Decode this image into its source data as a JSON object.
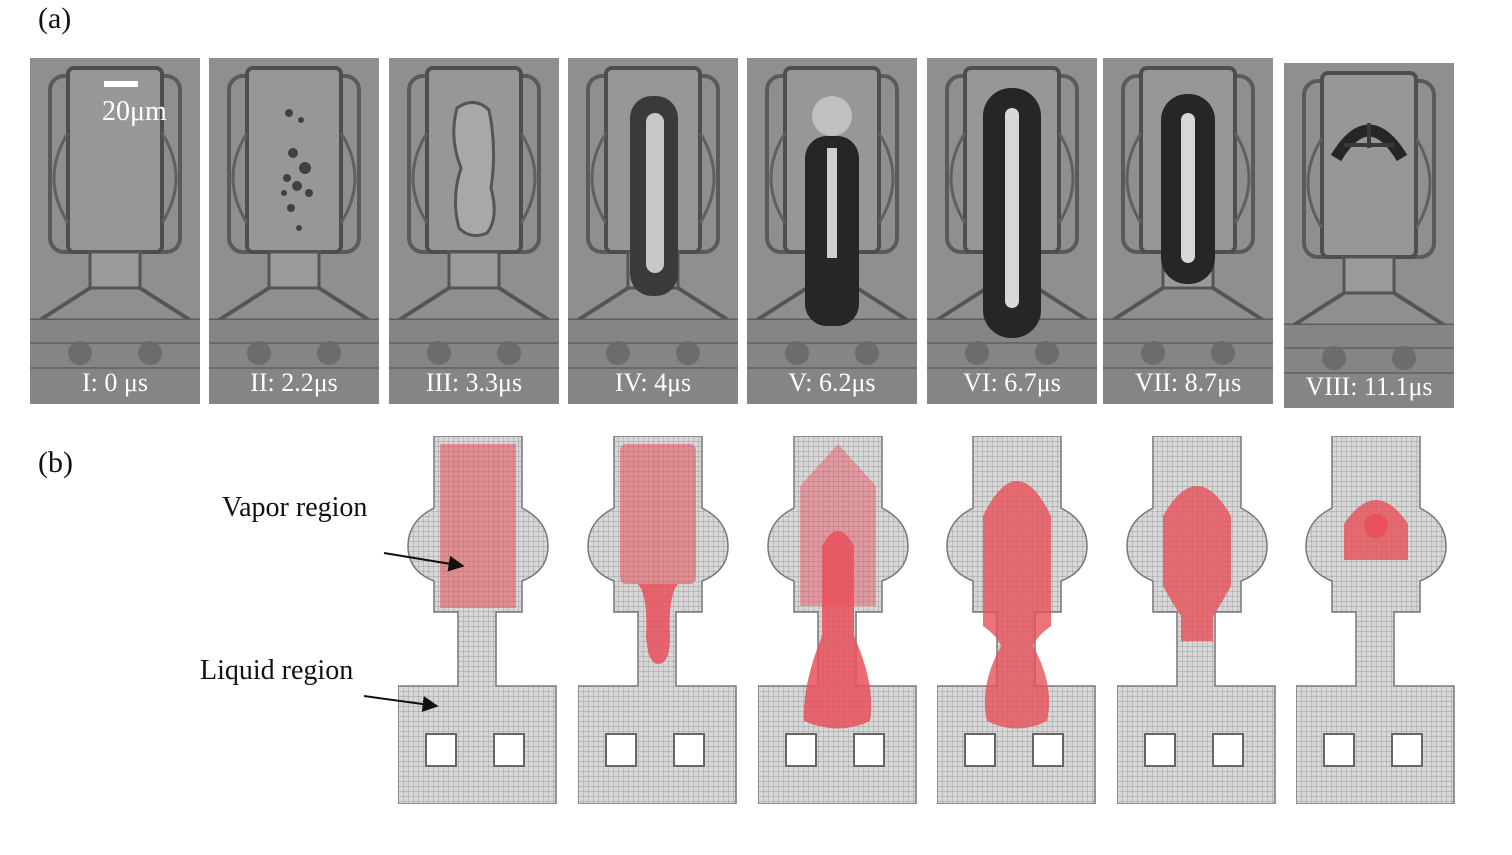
{
  "panel_a": {
    "label": "(a)",
    "scale_bar_label": "20μm",
    "frames": [
      {
        "caption": "I: 0 μs"
      },
      {
        "caption": "II: 2.2μs"
      },
      {
        "caption": "III: 3.3μs"
      },
      {
        "caption": "IV: 4μs"
      },
      {
        "caption": "V: 6.2μs"
      },
      {
        "caption": "VI: 6.7μs"
      },
      {
        "caption": "VII: 8.7μs"
      },
      {
        "caption": "VIII: 11.1μs"
      }
    ]
  },
  "panel_b": {
    "label": "(b)",
    "vapor_label": "Vapor region",
    "liquid_label": "Liquid region",
    "colors": {
      "vapor": "#e8505a",
      "mesh": "#8a8a8a",
      "mesh_bg": "#d8d8d8"
    }
  }
}
